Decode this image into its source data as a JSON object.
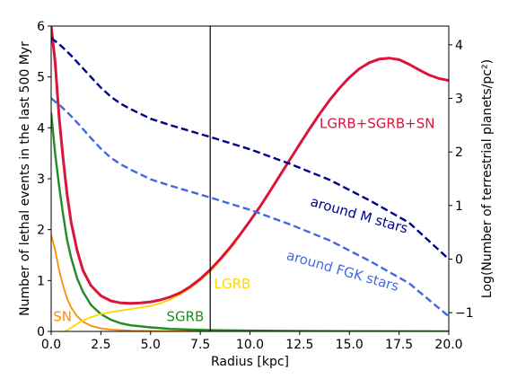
{
  "chart_data": {
    "type": "line",
    "xlabel": "Radius [kpc]",
    "ylabel_left": "Number of lethal events in the last 500 Myr",
    "ylabel_right": "Log(Number of terrestrial planets/pc²)",
    "xlim": [
      0,
      20
    ],
    "ylim_left": [
      0,
      6
    ],
    "ylim_right": [
      -1.35,
      4.35
    ],
    "x_ticks": [
      0.0,
      2.5,
      5.0,
      7.5,
      10.0,
      12.5,
      15.0,
      17.5,
      20.0
    ],
    "x_tick_labels": [
      "0.0",
      "2.5",
      "5.0",
      "7.5",
      "10.0",
      "12.5",
      "15.0",
      "17.5",
      "20.0"
    ],
    "y_left_ticks": [
      0,
      1,
      2,
      3,
      4,
      5,
      6
    ],
    "y_left_tick_labels": [
      "0",
      "1",
      "2",
      "3",
      "4",
      "5",
      "6"
    ],
    "y_right_ticks": [
      -1,
      0,
      1,
      2,
      3,
      4
    ],
    "y_right_tick_labels": [
      "−1",
      "0",
      "1",
      "2",
      "3",
      "4"
    ],
    "vline_x": 8.0,
    "series": [
      {
        "name": "SN",
        "axis": "left",
        "color": "#ff8c00",
        "dash": false,
        "width": 1.8,
        "x": [
          0,
          0.2,
          0.4,
          0.6,
          0.8,
          1.0,
          1.3,
          1.6,
          2.0,
          2.5,
          3.0,
          4.0,
          5.0,
          7.0,
          10.0,
          20.0
        ],
        "y": [
          1.9,
          1.6,
          1.2,
          0.9,
          0.65,
          0.47,
          0.3,
          0.19,
          0.11,
          0.06,
          0.035,
          0.015,
          0.008,
          0.004,
          0.002,
          0.0
        ]
      },
      {
        "name": "SGRB",
        "axis": "left",
        "color": "#228b22",
        "dash": false,
        "width": 2.4,
        "x": [
          0,
          0.2,
          0.4,
          0.6,
          0.8,
          1.0,
          1.3,
          1.6,
          2.0,
          2.5,
          3.0,
          3.5,
          4.0,
          5.0,
          6.0,
          7.0,
          8.0,
          10.0,
          12.0,
          15.0,
          20.0
        ],
        "y": [
          4.3,
          3.5,
          2.85,
          2.3,
          1.8,
          1.45,
          1.05,
          0.78,
          0.52,
          0.34,
          0.23,
          0.16,
          0.12,
          0.08,
          0.05,
          0.035,
          0.025,
          0.015,
          0.01,
          0.005,
          0.0
        ]
      },
      {
        "name": "LGRB",
        "axis": "left",
        "color": "#ffd700",
        "dash": false,
        "width": 1.8,
        "x": [
          0.7,
          1.0,
          1.5,
          2.0,
          2.5,
          3.0,
          3.5,
          4.0,
          4.5,
          5.0,
          5.5,
          6.0,
          6.5,
          7.0,
          7.5,
          8.0,
          8.5,
          9.0,
          9.3
        ],
        "y": [
          0.0,
          0.07,
          0.2,
          0.28,
          0.34,
          0.38,
          0.41,
          0.44,
          0.47,
          0.5,
          0.55,
          0.63,
          0.73,
          0.85,
          1.0,
          1.18,
          1.39,
          1.62,
          1.75
        ]
      },
      {
        "name": "LGRB+SGRB+SN",
        "axis": "left",
        "color": "#dc143c",
        "dash": false,
        "width": 3.0,
        "x": [
          0,
          0.2,
          0.4,
          0.6,
          0.8,
          1.0,
          1.3,
          1.6,
          2.0,
          2.5,
          3.0,
          3.5,
          4.0,
          4.5,
          5.0,
          5.5,
          6.0,
          6.5,
          7.0,
          7.5,
          8.0,
          8.5,
          9.0,
          9.5,
          10.0,
          10.5,
          11.0,
          11.5,
          12.0,
          12.5,
          13.0,
          13.5,
          14.0,
          14.5,
          15.0,
          15.5,
          16.0,
          16.5,
          17.0,
          17.5,
          18.0,
          18.5,
          19.0,
          19.5,
          20.0
        ],
        "y": [
          6.0,
          5.3,
          4.2,
          3.4,
          2.7,
          2.15,
          1.6,
          1.2,
          0.9,
          0.7,
          0.6,
          0.56,
          0.55,
          0.56,
          0.58,
          0.62,
          0.68,
          0.76,
          0.88,
          1.03,
          1.21,
          1.42,
          1.65,
          1.9,
          2.17,
          2.45,
          2.75,
          3.06,
          3.37,
          3.68,
          3.98,
          4.27,
          4.54,
          4.78,
          4.99,
          5.16,
          5.28,
          5.35,
          5.37,
          5.34,
          5.25,
          5.14,
          5.04,
          4.97,
          4.93
        ]
      },
      {
        "name": "around M stars",
        "axis": "right",
        "color": "#00008b",
        "dash": true,
        "width": 2.4,
        "x": [
          0,
          0.5,
          1.0,
          1.5,
          2.0,
          2.5,
          3.0,
          3.5,
          4.0,
          5.0,
          6.0,
          7.0,
          8.0,
          10.0,
          12.0,
          14.0,
          16.0,
          18.0,
          20.0
        ],
        "y": [
          4.13,
          3.98,
          3.8,
          3.6,
          3.4,
          3.2,
          3.03,
          2.9,
          2.8,
          2.62,
          2.5,
          2.39,
          2.28,
          2.05,
          1.78,
          1.48,
          1.1,
          0.68,
          0.0
        ]
      },
      {
        "name": "around FGK stars",
        "axis": "right",
        "color": "#4169e1",
        "dash": true,
        "width": 2.4,
        "x": [
          0,
          0.5,
          1.0,
          1.5,
          2.0,
          2.5,
          3.0,
          3.5,
          4.0,
          5.0,
          6.0,
          7.0,
          8.0,
          10.0,
          12.0,
          14.0,
          16.0,
          18.0,
          20.0
        ],
        "y": [
          3.0,
          2.85,
          2.67,
          2.47,
          2.26,
          2.06,
          1.89,
          1.77,
          1.67,
          1.49,
          1.37,
          1.26,
          1.15,
          0.92,
          0.65,
          0.35,
          -0.03,
          -0.45,
          -1.07
        ]
      }
    ],
    "annotations": [
      {
        "text": "SN",
        "color": "#ff8c00",
        "x": 0.1,
        "y": 0.2,
        "axis": "left",
        "rotate": 0
      },
      {
        "text": "SGRB",
        "color": "#228b22",
        "x": 5.8,
        "y": 0.2,
        "axis": "left",
        "rotate": 0
      },
      {
        "text": "LGRB",
        "color": "#ffd700",
        "x": 8.2,
        "y": 0.85,
        "axis": "left",
        "rotate": 0
      },
      {
        "text": "LGRB+SGRB+SN",
        "color": "#dc143c",
        "x": 13.5,
        "y": 4.0,
        "axis": "left",
        "rotate": 0
      },
      {
        "text": "around M stars",
        "color": "#00008b",
        "x": 13.0,
        "y": 1.0,
        "axis": "right",
        "rotate": 16
      },
      {
        "text": "around FGK stars",
        "color": "#4169e1",
        "x": 11.8,
        "y": 0.0,
        "axis": "right",
        "rotate": 16
      }
    ]
  }
}
